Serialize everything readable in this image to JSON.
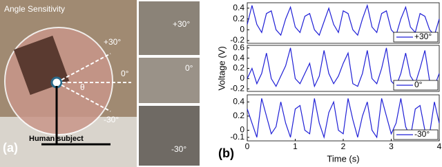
{
  "figure_a": {
    "title": "Angle Sensitivity",
    "angle_plus": "+30°",
    "angle_zero": "0°",
    "angle_minus": "-30°",
    "theta": "θ",
    "panel_label": "(a)",
    "subject_label": "Human subject",
    "inset_plus": "+30°",
    "inset_zero": "0°",
    "inset_minus": "-30°"
  },
  "panel_b_label": "(b)",
  "chart_data": [
    {
      "type": "line",
      "x": [
        0,
        0.1,
        0.2,
        0.3,
        0.4,
        0.5,
        0.6,
        0.7,
        0.8,
        0.9,
        1,
        1.1,
        1.2,
        1.3,
        1.4,
        1.5,
        1.6,
        1.7,
        1.8,
        1.9,
        2,
        2.1,
        2.2,
        2.3,
        2.4,
        2.5,
        2.6,
        2.7,
        2.8,
        2.9,
        3,
        3.1,
        3.2,
        3.3,
        3.4,
        3.5,
        3.6,
        3.7,
        3.8,
        3.9,
        4
      ],
      "series": [
        {
          "name": "+30°",
          "color": "#1f1fd6",
          "values": [
            0.1,
            0.45,
            0.1,
            -0.05,
            0.3,
            0.35,
            0.0,
            -0.1,
            0.2,
            0.42,
            0.05,
            -0.05,
            0.25,
            0.3,
            0.0,
            -0.1,
            0.15,
            0.4,
            0.1,
            -0.05,
            0.35,
            0.3,
            0.0,
            -0.1,
            0.2,
            0.45,
            0.05,
            -0.05,
            0.3,
            0.35,
            0.0,
            -0.1,
            0.2,
            0.42,
            0.05,
            -0.05,
            0.3,
            0.25,
            0.0,
            -0.1,
            0.2
          ]
        }
      ],
      "xlim": [
        0,
        4
      ],
      "ylim": [
        -0.25,
        0.5
      ],
      "yticks": [
        -0.2,
        0,
        0.2,
        0.4
      ]
    },
    {
      "type": "line",
      "x": [
        0,
        0.1,
        0.2,
        0.3,
        0.4,
        0.5,
        0.6,
        0.7,
        0.8,
        0.9,
        1,
        1.1,
        1.2,
        1.3,
        1.4,
        1.5,
        1.6,
        1.7,
        1.8,
        1.9,
        2,
        2.1,
        2.2,
        2.3,
        2.4,
        2.5,
        2.6,
        2.7,
        2.8,
        2.9,
        3,
        3.1,
        3.2,
        3.3,
        3.4,
        3.5,
        3.6,
        3.7,
        3.8,
        3.9,
        4
      ],
      "series": [
        {
          "name": "0°",
          "color": "#1f1fd6",
          "values": [
            0.0,
            0.2,
            -0.1,
            0.1,
            0.5,
            0.0,
            -0.15,
            0.05,
            0.25,
            0.6,
            0.0,
            -0.1,
            0.1,
            0.3,
            -0.15,
            0.05,
            0.55,
            0.1,
            -0.1,
            0.05,
            0.3,
            0.5,
            -0.1,
            -0.15,
            0.1,
            0.55,
            0.0,
            -0.1,
            0.2,
            0.6,
            -0.05,
            -0.15,
            0.1,
            0.5,
            0.05,
            -0.1,
            0.2,
            0.55,
            -0.05,
            -0.15,
            0.1
          ]
        }
      ],
      "xlim": [
        0,
        4
      ],
      "ylim": [
        -0.25,
        0.65
      ],
      "yticks": [
        -0.2,
        0,
        0.2,
        0.4,
        0.6
      ],
      "ylabel": "Voltage (V)"
    },
    {
      "type": "line",
      "x": [
        0,
        0.1,
        0.2,
        0.3,
        0.4,
        0.5,
        0.6,
        0.7,
        0.8,
        0.9,
        1,
        1.1,
        1.2,
        1.3,
        1.4,
        1.5,
        1.6,
        1.7,
        1.8,
        1.9,
        2,
        2.1,
        2.2,
        2.3,
        2.4,
        2.5,
        2.6,
        2.7,
        2.8,
        2.9,
        3,
        3.1,
        3.2,
        3.3,
        3.4,
        3.5,
        3.6,
        3.7,
        3.8,
        3.9,
        4
      ],
      "series": [
        {
          "name": "-30°",
          "color": "#1f1fd6",
          "values": [
            0.3,
            0.1,
            -0.1,
            0.45,
            0.2,
            -0.05,
            0.05,
            0.4,
            0.1,
            -0.1,
            0.3,
            0.35,
            0.0,
            -0.05,
            0.45,
            0.1,
            -0.1,
            0.25,
            0.4,
            0.0,
            -0.05,
            0.45,
            0.15,
            -0.1,
            0.2,
            0.4,
            0.0,
            -0.1,
            0.45,
            0.2,
            -0.05,
            0.1,
            0.45,
            0.05,
            -0.1,
            0.3,
            0.35,
            0.0,
            -0.05,
            0.4,
            0.1
          ]
        }
      ],
      "xlim": [
        0,
        4
      ],
      "ylim": [
        -0.15,
        0.5
      ],
      "yticks": [
        -0.1,
        0,
        0.2,
        0.4
      ],
      "xticks": [
        0,
        1,
        2,
        3,
        4
      ],
      "xlabel": "Time (s)"
    }
  ]
}
